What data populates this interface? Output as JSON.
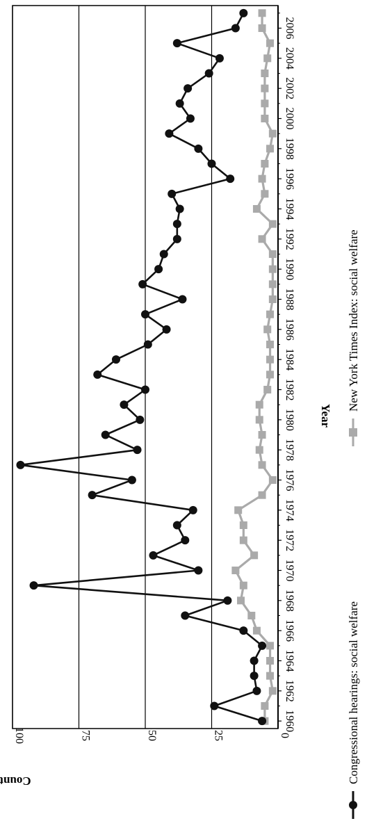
{
  "chart_data": {
    "type": "line",
    "orientation": "rotated-90-clockwise",
    "xlabel": "Year",
    "ylabel": "Count",
    "x_tick_labels": [
      "1960",
      "1962",
      "1964",
      "1966",
      "1968",
      "1970",
      "1972",
      "1974",
      "1976",
      "1978",
      "1980",
      "1982",
      "1984",
      "1986",
      "1988",
      "1990",
      "1992",
      "1994",
      "1996",
      "1998",
      "2000",
      "2002",
      "2004",
      "2006"
    ],
    "y_ticks": [
      "0",
      "25",
      "50",
      "75",
      "100"
    ],
    "ylim": [
      0,
      100
    ],
    "xlim": [
      1959.5,
      2007.5
    ],
    "grid": true,
    "legend_position": "bottom",
    "x": [
      1960,
      1961,
      1962,
      1963,
      1964,
      1965,
      1966,
      1967,
      1968,
      1969,
      1970,
      1971,
      1972,
      1973,
      1974,
      1975,
      1976,
      1977,
      1978,
      1979,
      1980,
      1981,
      1982,
      1983,
      1984,
      1985,
      1986,
      1987,
      1988,
      1989,
      1990,
      1991,
      1992,
      1993,
      1994,
      1995,
      1996,
      1997,
      1998,
      1999,
      2000,
      2001,
      2002,
      2003,
      2004,
      2005,
      2006,
      2007
    ],
    "series": [
      {
        "name": "Congressional hearings: social welfare",
        "color": "#111111",
        "marker": "circle",
        "values": [
          6,
          24,
          8,
          9,
          9,
          6,
          13,
          35,
          19,
          92,
          30,
          47,
          35,
          38,
          32,
          70,
          55,
          97,
          53,
          65,
          52,
          58,
          50,
          68,
          61,
          49,
          42,
          50,
          36,
          51,
          45,
          43,
          38,
          38,
          37,
          40,
          18,
          25,
          30,
          41,
          33,
          37,
          34,
          26,
          22,
          38,
          16,
          13
        ]
      },
      {
        "name": "New York Times Index: social welfare",
        "color": "#aaaaaa",
        "marker": "square",
        "values": [
          5,
          5,
          2,
          3,
          3,
          3,
          8,
          10,
          14,
          13,
          16,
          9,
          13,
          13,
          15,
          6,
          2,
          6,
          7,
          6,
          7,
          7,
          4,
          3,
          3,
          3,
          4,
          3,
          2,
          2,
          2,
          2,
          6,
          2,
          8,
          5,
          6,
          5,
          3,
          2,
          5,
          5,
          5,
          5,
          4,
          3,
          6,
          6
        ]
      }
    ]
  }
}
